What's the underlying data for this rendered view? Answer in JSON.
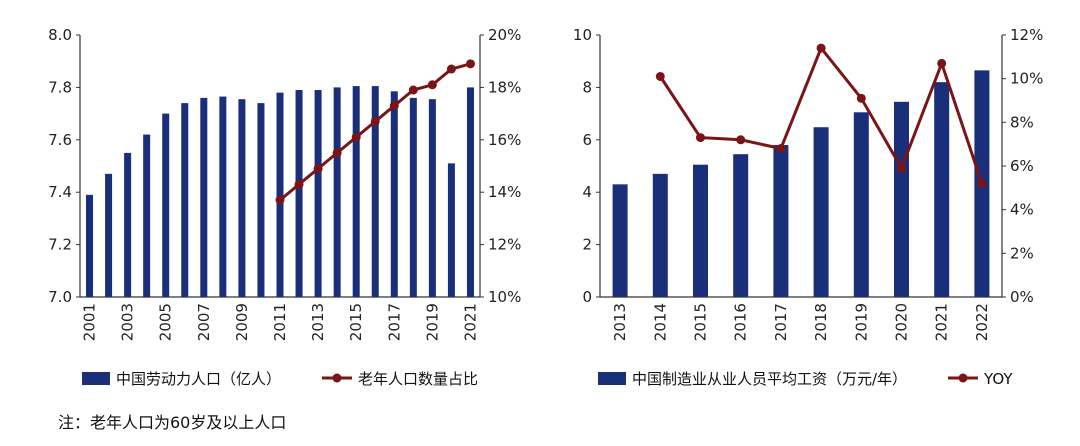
{
  "colors": {
    "bar": "#1a2f7a",
    "line": "#7a1416",
    "axis": "#333333"
  },
  "note": "注：老年人口为60岁及以上人口",
  "chart_data": [
    {
      "type": "bar+line",
      "title": "",
      "categories": [
        "2001",
        "2002",
        "2003",
        "2004",
        "2005",
        "2006",
        "2007",
        "2008",
        "2009",
        "2010",
        "2011",
        "2012",
        "2013",
        "2014",
        "2015",
        "2016",
        "2017",
        "2018",
        "2019",
        "2020",
        "2021"
      ],
      "x_tick_labels": [
        "2001",
        "2003",
        "2005",
        "2007",
        "2009",
        "2011",
        "2013",
        "2015",
        "2017",
        "2019",
        "2021"
      ],
      "left_axis": {
        "min": 7.0,
        "max": 8.0,
        "ticks": [
          "7.0",
          "7.2",
          "7.4",
          "7.6",
          "7.8",
          "8.0"
        ]
      },
      "right_axis": {
        "min": 10,
        "max": 20,
        "ticks": [
          "10%",
          "12%",
          "14%",
          "16%",
          "18%",
          "20%"
        ]
      },
      "series": [
        {
          "name": "中国劳动力人口（亿人）",
          "type": "bar",
          "axis": "left",
          "values": [
            7.39,
            7.47,
            7.55,
            7.62,
            7.7,
            7.74,
            7.76,
            7.765,
            7.755,
            7.74,
            7.78,
            7.79,
            7.79,
            7.8,
            7.805,
            7.805,
            7.785,
            7.76,
            7.755,
            7.51,
            7.8
          ]
        },
        {
          "name": "老年人口数量占比",
          "type": "line",
          "axis": "right",
          "values": [
            null,
            null,
            null,
            null,
            null,
            null,
            null,
            null,
            null,
            null,
            13.7,
            14.3,
            14.9,
            15.5,
            16.1,
            16.7,
            17.3,
            17.9,
            18.1,
            18.7,
            18.9
          ]
        }
      ]
    },
    {
      "type": "bar+line",
      "title": "",
      "categories": [
        "2013",
        "2014",
        "2015",
        "2016",
        "2017",
        "2018",
        "2019",
        "2020",
        "2021",
        "2022"
      ],
      "x_tick_labels": [
        "2013",
        "2014",
        "2015",
        "2016",
        "2017",
        "2018",
        "2019",
        "2020",
        "2021",
        "2022"
      ],
      "left_axis": {
        "min": 0,
        "max": 10,
        "ticks": [
          "0",
          "2",
          "4",
          "6",
          "8",
          "10"
        ]
      },
      "right_axis": {
        "min": 0,
        "max": 12,
        "ticks": [
          "0%",
          "2%",
          "4%",
          "6%",
          "8%",
          "10%",
          "12%"
        ]
      },
      "series": [
        {
          "name": "中国制造业从业人员平均工资（万元/年）",
          "type": "bar",
          "axis": "left",
          "values": [
            4.3,
            4.7,
            5.05,
            5.45,
            5.8,
            6.48,
            7.05,
            7.45,
            8.2,
            8.65
          ]
        },
        {
          "name": "YOY",
          "type": "line",
          "axis": "right",
          "values": [
            null,
            10.1,
            7.3,
            7.2,
            6.8,
            11.4,
            9.1,
            5.9,
            10.7,
            5.2
          ]
        }
      ]
    }
  ]
}
